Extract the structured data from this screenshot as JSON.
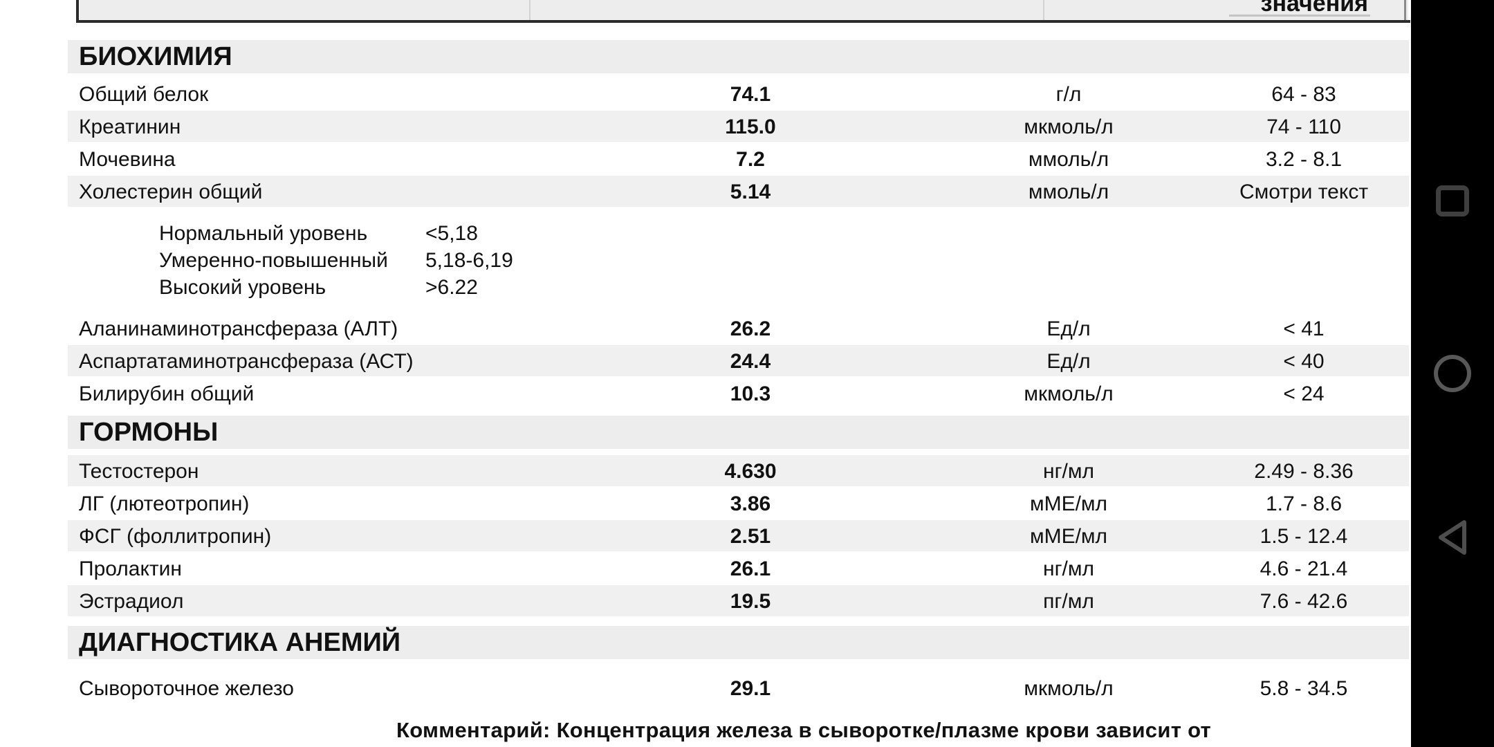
{
  "header": {
    "visible_column_label": "значения"
  },
  "report": {
    "sections": [
      {
        "title": "БИОХИМИЯ",
        "rows": [
          {
            "name": "Общий белок",
            "value": "74.1",
            "unit": "г/л",
            "range": "64 - 83",
            "shaded": false
          },
          {
            "name": "Креатинин",
            "value": "115.0",
            "unit": "мкмоль/л",
            "range": "74 - 110",
            "shaded": true
          },
          {
            "name": "Мочевина",
            "value": "7.2",
            "unit": "ммоль/л",
            "range": "3.2 - 8.1",
            "shaded": false
          },
          {
            "name": "Холестерин общий",
            "value": "5.14",
            "unit": "ммоль/л",
            "range": "Смотри текст",
            "shaded": true,
            "note_lines": [
              {
                "label": "Нормальный уровень",
                "value": "<5,18"
              },
              {
                "label": "Умеренно-повышенный",
                "value": "5,18-6,19"
              },
              {
                "label": "Высокий уровень",
                "value": ">6.22"
              }
            ]
          },
          {
            "name": "Аланинаминотрансфераза (АЛТ)",
            "value": "26.2",
            "unit": "Ед/л",
            "range": "< 41",
            "shaded": false
          },
          {
            "name": "Аспартатаминотрансфераза (АСТ)",
            "value": "24.4",
            "unit": "Ед/л",
            "range": "< 40",
            "shaded": true
          },
          {
            "name": "Билирубин общий",
            "value": "10.3",
            "unit": "мкмоль/л",
            "range": "< 24",
            "shaded": false
          }
        ]
      },
      {
        "title": "ГОРМОНЫ",
        "rows": [
          {
            "name": "Тестостерон",
            "value": "4.630",
            "unit": "нг/мл",
            "range": "2.49 - 8.36",
            "shaded": true
          },
          {
            "name": "ЛГ (лютеотропин)",
            "value": "3.86",
            "unit": "мМЕ/мл",
            "range": "1.7 - 8.6",
            "shaded": false
          },
          {
            "name": "ФСГ (фоллитропин)",
            "value": "2.51",
            "unit": "мМЕ/мл",
            "range": "1.5 - 12.4",
            "shaded": true
          },
          {
            "name": "Пролактин",
            "value": "26.1",
            "unit": "нг/мл",
            "range": "4.6 - 21.4",
            "shaded": false
          },
          {
            "name": "Эстрадиол",
            "value": "19.5",
            "unit": "пг/мл",
            "range": "7.6 - 42.6",
            "shaded": true
          }
        ]
      },
      {
        "title": "ДИАГНОСТИКА АНЕМИЙ",
        "rows": [
          {
            "name": "Сывороточное железо",
            "value": "29.1",
            "unit": "мкмоль/л",
            "range": "5.8 - 34.5",
            "shaded": false
          }
        ]
      }
    ],
    "comment": "Комментарий: Концентрация железа в сыворотке/плазме крови зависит от"
  },
  "nav_bar": {
    "buttons": [
      {
        "name": "recents",
        "shape": "square"
      },
      {
        "name": "home",
        "shape": "circle"
      },
      {
        "name": "back",
        "shape": "triangle-left"
      }
    ]
  },
  "colors": {
    "row_stripe": "#f0f0f0",
    "section_band": "#ededed",
    "border_line": "#2b2b2b",
    "sidebar": "#000000",
    "nav_icon": "#4b4b4b"
  }
}
